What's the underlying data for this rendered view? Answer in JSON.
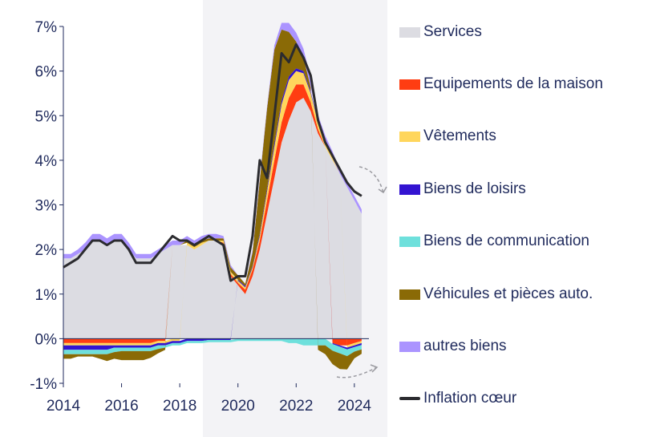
{
  "chart_data": {
    "type": "area",
    "title": "",
    "xlabel": "",
    "ylabel": "",
    "xlim": [
      2014,
      2024.5
    ],
    "ylim": [
      -1,
      7
    ],
    "x_ticks": [
      "2014",
      "2016",
      "2018",
      "2020",
      "2022",
      "2024"
    ],
    "y_ticks": [
      "-1%",
      "0%",
      "1%",
      "2%",
      "3%",
      "4%",
      "5%",
      "6%",
      "7%"
    ],
    "legend_position": "right",
    "x": [
      2014.0,
      2014.25,
      2014.5,
      2014.75,
      2015.0,
      2015.25,
      2015.5,
      2015.75,
      2016.0,
      2016.25,
      2016.5,
      2016.75,
      2017.0,
      2017.25,
      2017.5,
      2017.75,
      2018.0,
      2018.25,
      2018.5,
      2018.75,
      2019.0,
      2019.25,
      2019.5,
      2019.75,
      2020.0,
      2020.25,
      2020.5,
      2020.75,
      2021.0,
      2021.25,
      2021.5,
      2021.75,
      2022.0,
      2022.25,
      2022.5,
      2022.75,
      2023.0,
      2023.25,
      2023.5,
      2023.75,
      2024.0,
      2024.25
    ],
    "series": [
      {
        "name": "Services",
        "color": "#dcdce2",
        "values": [
          1.8,
          1.8,
          1.9,
          2.0,
          2.2,
          2.2,
          2.1,
          2.2,
          2.2,
          2.0,
          1.8,
          1.8,
          1.8,
          1.9,
          2.0,
          2.1,
          2.1,
          2.1,
          2.0,
          2.1,
          2.2,
          2.2,
          2.1,
          1.4,
          1.2,
          1.0,
          1.4,
          2.0,
          2.8,
          3.6,
          4.4,
          4.9,
          5.3,
          5.4,
          5.1,
          4.6,
          4.3,
          4.0,
          3.7,
          3.4,
          3.1,
          2.8
        ]
      },
      {
        "name": "Equipements de la maison",
        "color": "#ff3d12",
        "values": [
          -0.1,
          -0.1,
          -0.1,
          -0.1,
          -0.1,
          -0.1,
          -0.1,
          -0.1,
          -0.1,
          -0.1,
          -0.1,
          -0.1,
          -0.1,
          -0.05,
          -0.05,
          0.0,
          0.0,
          0.0,
          0.0,
          0.0,
          0.0,
          0.0,
          0.05,
          0.05,
          0.05,
          0.1,
          0.15,
          0.2,
          0.3,
          0.4,
          0.45,
          0.5,
          0.4,
          0.3,
          0.2,
          0.1,
          0.0,
          -0.1,
          -0.15,
          -0.15,
          -0.1,
          -0.05
        ]
      },
      {
        "name": "Vêtements",
        "color": "#ffd65c",
        "values": [
          -0.05,
          -0.05,
          -0.05,
          -0.05,
          -0.05,
          -0.05,
          -0.05,
          -0.05,
          -0.05,
          -0.05,
          -0.05,
          -0.05,
          -0.05,
          -0.05,
          -0.05,
          -0.05,
          -0.05,
          0.05,
          0.05,
          0.05,
          0.0,
          0.0,
          0.05,
          0.05,
          0.05,
          0.05,
          0.05,
          0.1,
          0.2,
          0.3,
          0.4,
          0.4,
          0.3,
          0.25,
          0.2,
          0.15,
          0.1,
          0.05,
          0.0,
          -0.05,
          -0.05,
          -0.05
        ]
      },
      {
        "name": "Biens de loisirs",
        "color": "#3314d1",
        "values": [
          -0.1,
          -0.1,
          -0.1,
          -0.1,
          -0.1,
          -0.1,
          -0.1,
          -0.05,
          -0.05,
          -0.05,
          -0.05,
          -0.05,
          -0.05,
          -0.05,
          -0.05,
          -0.05,
          -0.05,
          -0.05,
          -0.05,
          -0.05,
          -0.03,
          -0.03,
          -0.03,
          -0.03,
          0.02,
          0.03,
          0.03,
          0.05,
          0.06,
          0.08,
          0.08,
          0.08,
          0.06,
          0.05,
          0.04,
          0.02,
          0.0,
          -0.02,
          -0.03,
          -0.04,
          -0.04,
          -0.04
        ]
      },
      {
        "name": "Biens de communication",
        "color": "#6ee0dc",
        "values": [
          -0.1,
          -0.1,
          -0.1,
          -0.1,
          -0.1,
          -0.1,
          -0.1,
          -0.1,
          -0.08,
          -0.08,
          -0.08,
          -0.08,
          -0.08,
          -0.08,
          -0.05,
          -0.05,
          -0.05,
          -0.05,
          -0.05,
          -0.05,
          -0.05,
          -0.05,
          -0.05,
          -0.05,
          -0.05,
          -0.05,
          -0.05,
          -0.05,
          -0.05,
          -0.05,
          -0.05,
          -0.1,
          -0.1,
          -0.15,
          -0.15,
          -0.15,
          -0.15,
          -0.15,
          -0.15,
          -0.15,
          -0.1,
          -0.1
        ]
      },
      {
        "name": "Véhicules et pièces auto.",
        "color": "#8a6a06",
        "values": [
          -0.1,
          -0.1,
          -0.05,
          -0.05,
          -0.05,
          -0.1,
          -0.15,
          -0.15,
          -0.2,
          -0.2,
          -0.2,
          -0.2,
          -0.15,
          -0.1,
          -0.05,
          0.0,
          0.0,
          0.05,
          0.05,
          0.05,
          0.05,
          0.05,
          0.05,
          0.1,
          0.1,
          0.05,
          0.3,
          1.2,
          1.8,
          2.1,
          1.6,
          1.0,
          0.6,
          0.3,
          0.1,
          -0.1,
          -0.2,
          -0.3,
          -0.35,
          -0.3,
          -0.15,
          -0.1
        ]
      },
      {
        "name": "autres biens",
        "color": "#ab94ff",
        "values": [
          0.1,
          0.1,
          0.1,
          0.15,
          0.15,
          0.15,
          0.15,
          0.15,
          0.15,
          0.15,
          0.1,
          0.1,
          0.1,
          0.1,
          0.1,
          0.1,
          0.1,
          0.1,
          0.1,
          0.1,
          0.1,
          0.1,
          0.05,
          0.05,
          0.0,
          0.0,
          0.05,
          0.05,
          0.05,
          0.1,
          0.15,
          0.2,
          0.2,
          0.2,
          0.2,
          0.15,
          0.15,
          0.15,
          0.1,
          0.1,
          0.1,
          0.1
        ]
      },
      {
        "name": "Inflation cœur",
        "color": "#2b2b2f",
        "type": "line",
        "values": [
          1.6,
          1.7,
          1.8,
          2.0,
          2.2,
          2.2,
          2.1,
          2.2,
          2.2,
          2.0,
          1.7,
          1.7,
          1.7,
          1.9,
          2.1,
          2.3,
          2.2,
          2.2,
          2.1,
          2.2,
          2.3,
          2.2,
          2.1,
          1.3,
          1.4,
          1.4,
          2.3,
          4.0,
          3.6,
          5.0,
          6.4,
          6.2,
          6.6,
          6.3,
          5.9,
          4.9,
          4.4,
          4.1,
          3.8,
          3.5,
          3.3,
          3.2
        ]
      }
    ]
  },
  "legend": {
    "items": [
      {
        "label": "Services",
        "color": "#dcdce2",
        "kind": "box"
      },
      {
        "label": "Equipements de la maison",
        "color": "#ff3d12",
        "kind": "box"
      },
      {
        "label": "Vêtements",
        "color": "#ffd65c",
        "kind": "box"
      },
      {
        "label": "Biens de loisirs",
        "color": "#3314d1",
        "kind": "box"
      },
      {
        "label": "Biens de communication",
        "color": "#6ee0dc",
        "kind": "box"
      },
      {
        "label": "Véhicules et pièces auto.",
        "color": "#8a6a06",
        "kind": "box"
      },
      {
        "label": "autres biens",
        "color": "#ab94ff",
        "kind": "box"
      },
      {
        "label": "Inflation cœur",
        "color": "#2b2b2f",
        "kind": "line"
      }
    ]
  }
}
